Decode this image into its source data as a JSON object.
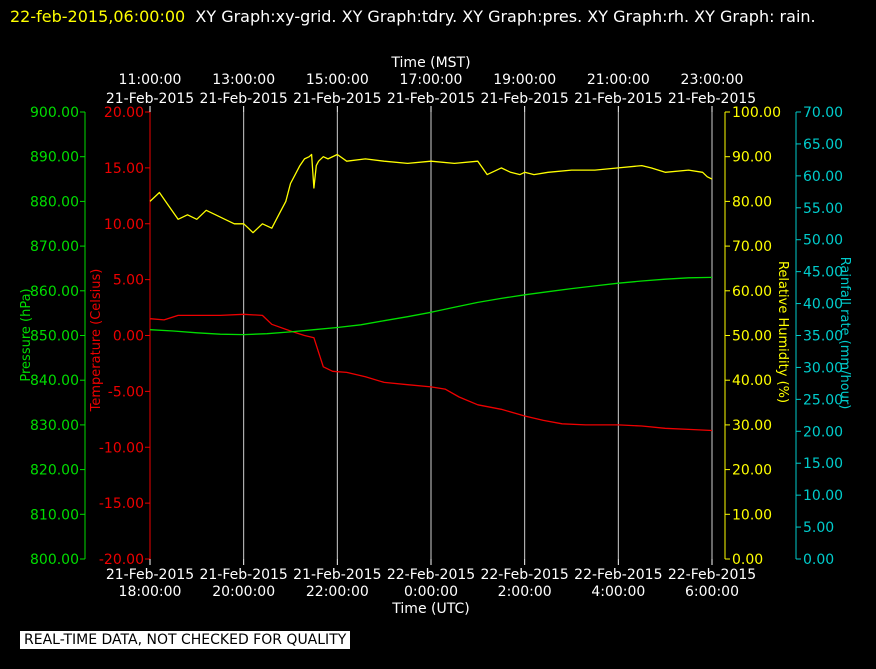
{
  "header": {
    "timestamp": "22-feb-2015,06:00:00",
    "graphs_text": "XY Graph:xy-grid.  XY Graph:tdry.  XY Graph:pres.  XY Graph:rh.  XY Graph: rain."
  },
  "footer": {
    "notice": "REAL-TIME DATA, NOT CHECKED FOR QUALITY"
  },
  "chart_data": {
    "type": "line",
    "x_unit": "hours from 21-Feb-2015 18:00 UTC",
    "xlim": [
      0,
      12
    ],
    "grid": true,
    "bottom_axis": {
      "label": "Time (UTC)",
      "ticks": [
        {
          "x": 0,
          "date": "21-Feb-2015",
          "time": "18:00:00"
        },
        {
          "x": 2,
          "date": "21-Feb-2015",
          "time": "20:00:00"
        },
        {
          "x": 4,
          "date": "21-Feb-2015",
          "time": "22:00:00"
        },
        {
          "x": 6,
          "date": "22-Feb-2015",
          "time": "0:00:00"
        },
        {
          "x": 8,
          "date": "22-Feb-2015",
          "time": "2:00:00"
        },
        {
          "x": 10,
          "date": "22-Feb-2015",
          "time": "4:00:00"
        },
        {
          "x": 12,
          "date": "22-Feb-2015",
          "time": "6:00:00"
        }
      ]
    },
    "top_axis": {
      "label": "Time (MST)",
      "ticks": [
        {
          "x": 0,
          "time": "11:00:00",
          "date": "21-Feb-2015"
        },
        {
          "x": 2,
          "time": "13:00:00",
          "date": "21-Feb-2015"
        },
        {
          "x": 4,
          "time": "15:00:00",
          "date": "21-Feb-2015"
        },
        {
          "x": 6,
          "time": "17:00:00",
          "date": "21-Feb-2015"
        },
        {
          "x": 8,
          "time": "19:00:00",
          "date": "21-Feb-2015"
        },
        {
          "x": 10,
          "time": "21:00:00",
          "date": "21-Feb-2015"
        },
        {
          "x": 12,
          "time": "23:00:00",
          "date": "21-Feb-2015"
        }
      ]
    },
    "y_axes": [
      {
        "id": "pres",
        "label": "Pressure (hPa)",
        "color": "#00dd00",
        "range": [
          800,
          900
        ],
        "ticks": [
          "800.00",
          "810.00",
          "820.00",
          "830.00",
          "840.00",
          "850.00",
          "860.00",
          "870.00",
          "880.00",
          "890.00",
          "900.00"
        ]
      },
      {
        "id": "temp",
        "label": "Temperature (Celsius)",
        "color": "#ee0000",
        "range": [
          -20,
          20
        ],
        "ticks": [
          "-20.00",
          "-15.00",
          "-10.00",
          "-5.00",
          "0.00",
          "5.00",
          "10.00",
          "15.00",
          "20.00"
        ]
      },
      {
        "id": "rh",
        "label": "Relative Humidity (%)",
        "color": "#ffff00",
        "range": [
          0,
          100
        ],
        "ticks": [
          "0.00",
          "10.00",
          "20.00",
          "30.00",
          "40.00",
          "50.00",
          "60.00",
          "70.00",
          "80.00",
          "90.00",
          "100.00"
        ]
      },
      {
        "id": "rain",
        "label": "Rainfall rate (mm/hour)",
        "color": "#00cccc",
        "range": [
          0,
          70
        ],
        "ticks": [
          "0.00",
          "5.00",
          "10.00",
          "15.00",
          "20.00",
          "25.00",
          "30.00",
          "35.00",
          "40.00",
          "45.00",
          "50.00",
          "55.00",
          "60.00",
          "65.00",
          "70.00"
        ]
      }
    ],
    "series": [
      {
        "axis": "rh",
        "color": "#ffff00",
        "x": [
          0,
          0.2,
          0.4,
          0.6,
          0.8,
          1.0,
          1.2,
          1.4,
          1.6,
          1.8,
          2.0,
          2.1,
          2.2,
          2.4,
          2.6,
          2.7,
          2.8,
          2.9,
          3.0,
          3.1,
          3.2,
          3.3,
          3.4,
          3.45,
          3.5,
          3.55,
          3.6,
          3.7,
          3.8,
          4.0,
          4.2,
          4.6,
          5.0,
          5.5,
          6.0,
          6.5,
          7.0,
          7.2,
          7.5,
          7.7,
          7.9,
          8.0,
          8.2,
          8.5,
          9.0,
          9.5,
          10.0,
          10.5,
          10.7,
          11.0,
          11.5,
          11.8,
          11.9,
          12.0
        ],
        "y": [
          80,
          82,
          79,
          76,
          77,
          76,
          78,
          77,
          76,
          75,
          75,
          74,
          73,
          75,
          74,
          76,
          78,
          80,
          84,
          86,
          88,
          89.5,
          90,
          90.5,
          83,
          88,
          89,
          90,
          89.5,
          90.5,
          89,
          89.5,
          89,
          88.5,
          89,
          88.5,
          89,
          86,
          87.5,
          86.5,
          86,
          86.5,
          86,
          86.5,
          87,
          87,
          87.5,
          88,
          87.5,
          86.5,
          87,
          86.5,
          85.5,
          85
        ]
      },
      {
        "axis": "temp",
        "color": "#ee0000",
        "x": [
          0,
          0.3,
          0.6,
          1.0,
          1.5,
          2.0,
          2.4,
          2.6,
          3.0,
          3.3,
          3.5,
          3.6,
          3.7,
          3.9,
          4.2,
          4.6,
          5.0,
          5.5,
          6.0,
          6.3,
          6.6,
          7.0,
          7.5,
          8.0,
          8.4,
          8.8,
          9.3,
          10.0,
          10.5,
          11.0,
          11.5,
          12.0
        ],
        "y": [
          1.5,
          1.4,
          1.8,
          1.8,
          1.8,
          1.9,
          1.8,
          1.0,
          0.4,
          0.0,
          -0.2,
          -1.5,
          -2.8,
          -3.2,
          -3.3,
          -3.7,
          -4.2,
          -4.4,
          -4.6,
          -4.8,
          -5.5,
          -6.2,
          -6.6,
          -7.2,
          -7.6,
          -7.9,
          -8.0,
          -8.0,
          -8.1,
          -8.3,
          -8.4,
          -8.5
        ]
      },
      {
        "axis": "pres",
        "color": "#00dd00",
        "x": [
          0,
          0.5,
          1.0,
          1.5,
          2.0,
          2.5,
          3.0,
          3.5,
          4.0,
          4.5,
          5.0,
          5.5,
          6.0,
          6.5,
          7.0,
          7.5,
          8.0,
          8.5,
          9.0,
          9.5,
          10.0,
          10.5,
          11.0,
          11.5,
          12.0
        ],
        "y": [
          851.3,
          851.0,
          850.6,
          850.3,
          850.2,
          850.4,
          850.8,
          851.3,
          851.8,
          852.4,
          853.3,
          854.2,
          855.2,
          856.3,
          857.4,
          858.3,
          859.1,
          859.8,
          860.5,
          861.1,
          861.7,
          862.2,
          862.6,
          862.9,
          863.0
        ]
      }
    ]
  }
}
